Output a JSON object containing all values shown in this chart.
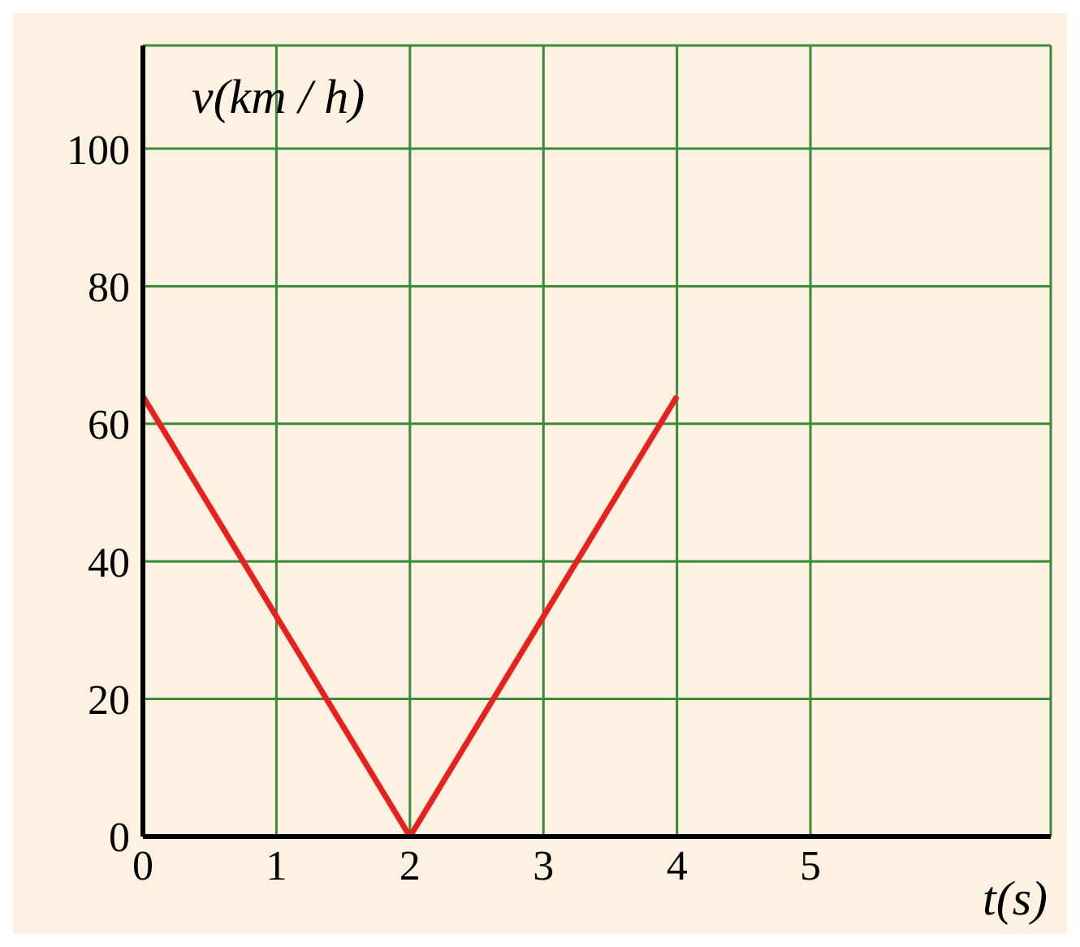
{
  "chart_data": {
    "type": "line",
    "xlabel": "t(s)",
    "ylabel": "v(km / h)",
    "x": [
      0,
      2,
      4
    ],
    "series": [
      {
        "color": "#e8211c",
        "values": [
          64,
          0,
          64
        ]
      }
    ],
    "xlim": [
      0,
      6.8
    ],
    "ylim": [
      0,
      115
    ],
    "xticks": [
      0,
      1,
      2,
      3,
      4,
      5
    ],
    "yticks": [
      0,
      20,
      40,
      60,
      80,
      100
    ],
    "grid": true,
    "marker": "none",
    "line_style": "solid"
  }
}
